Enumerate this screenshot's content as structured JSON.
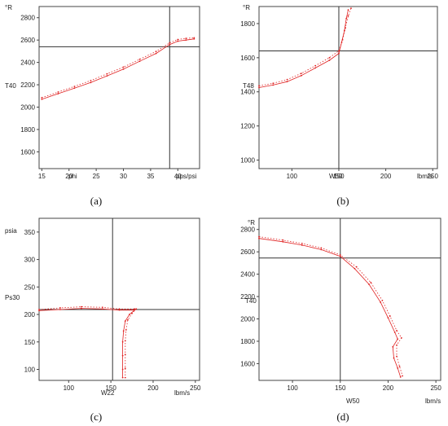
{
  "chart_data": [
    {
      "type": "line",
      "caption": "(a)",
      "unit_label": "°R",
      "xlabel": "phi",
      "ylabel": "T40",
      "xunit": "pps/psi",
      "xlim": [
        14.5,
        44
      ],
      "ylim": [
        1450,
        2900
      ],
      "xticks": [
        15,
        20,
        25,
        30,
        35,
        40
      ],
      "yticks": [
        1600,
        1800,
        2000,
        2200,
        2400,
        2600,
        2800
      ],
      "crosshair": {
        "x": 38.5,
        "y": 2540
      },
      "series": [
        {
          "points": [
            [
              15,
              2070
            ],
            [
              18,
              2120
            ],
            [
              21,
              2170
            ],
            [
              24,
              2220
            ],
            [
              27,
              2280
            ],
            [
              30,
              2340
            ],
            [
              33,
              2410
            ],
            [
              36,
              2480
            ],
            [
              38.5,
              2560
            ],
            [
              40,
              2590
            ],
            [
              41.5,
              2600
            ],
            [
              43,
              2610
            ]
          ]
        },
        {
          "points": [
            [
              15,
              2085
            ],
            [
              18,
              2135
            ],
            [
              21,
              2185
            ],
            [
              24,
              2238
            ],
            [
              27,
              2298
            ],
            [
              30,
              2358
            ],
            [
              33,
              2428
            ],
            [
              36,
              2498
            ],
            [
              38.5,
              2575
            ],
            [
              40,
              2605
            ],
            [
              41.5,
              2615
            ],
            [
              43,
              2620
            ]
          ]
        }
      ]
    },
    {
      "type": "line",
      "caption": "(b)",
      "unit_label": "°R",
      "xlabel": "W50",
      "ylabel": "T48",
      "xunit": "lbm/s",
      "xlim": [
        65,
        255
      ],
      "ylim": [
        950,
        1900
      ],
      "xticks": [
        100,
        150,
        200,
        250
      ],
      "yticks": [
        1000,
        1200,
        1400,
        1600,
        1800
      ],
      "crosshair": {
        "x": 150,
        "y": 1640
      },
      "series": [
        {
          "points": [
            [
              65,
              1425
            ],
            [
              80,
              1440
            ],
            [
              95,
              1460
            ],
            [
              110,
              1495
            ],
            [
              125,
              1540
            ],
            [
              140,
              1585
            ],
            [
              150,
              1625
            ],
            [
              153,
              1690
            ],
            [
              156,
              1760
            ],
            [
              158,
              1830
            ],
            [
              160,
              1880
            ]
          ]
        },
        {
          "points": [
            [
              65,
              1435
            ],
            [
              80,
              1450
            ],
            [
              95,
              1472
            ],
            [
              110,
              1508
            ],
            [
              125,
              1553
            ],
            [
              140,
              1600
            ],
            [
              150,
              1640
            ],
            [
              154,
              1705
            ],
            [
              157,
              1775
            ],
            [
              160,
              1845
            ],
            [
              163,
              1890
            ]
          ]
        }
      ]
    },
    {
      "type": "line",
      "caption": "(c)",
      "unit_label": "psia",
      "xlabel": "W22",
      "ylabel": "Ps30",
      "xunit": "lbm/s",
      "xlim": [
        65,
        255
      ],
      "ylim": [
        80,
        375
      ],
      "xticks": [
        100,
        150,
        200,
        250
      ],
      "yticks": [
        100,
        150,
        200,
        250,
        300,
        350
      ],
      "crosshair": {
        "x": 152,
        "y": 209
      },
      "series": [
        {
          "points": [
            [
              65,
              207
            ],
            [
              90,
              209
            ],
            [
              115,
              211
            ],
            [
              140,
              210
            ],
            [
              160,
              208
            ],
            [
              178,
              208
            ]
          ]
        },
        {
          "points": [
            [
              65,
              209
            ],
            [
              90,
              212
            ],
            [
              115,
              214
            ],
            [
              140,
              213
            ],
            [
              160,
              210
            ],
            [
              178,
              210
            ]
          ]
        },
        {
          "points": [
            [
              178,
              208
            ],
            [
              172,
              200
            ],
            [
              167,
              188
            ],
            [
              165,
              170
            ],
            [
              164,
              150
            ],
            [
              164,
              125
            ],
            [
              164,
              100
            ],
            [
              164,
              85
            ]
          ]
        },
        {
          "points": [
            [
              180,
              210
            ],
            [
              175,
              202
            ],
            [
              170,
              190
            ],
            [
              168,
              172
            ],
            [
              167,
              152
            ],
            [
              167,
              127
            ],
            [
              167,
              102
            ],
            [
              167,
              85
            ]
          ]
        }
      ]
    },
    {
      "type": "line",
      "caption": "(d)",
      "unit_label": "°R",
      "xlabel": "W50",
      "ylabel": "T40",
      "xunit": "lbm/s",
      "xlim": [
        65,
        255
      ],
      "ylim": [
        1450,
        2900
      ],
      "xticks": [
        100,
        150,
        200,
        250
      ],
      "yticks": [
        1600,
        1800,
        2000,
        2200,
        2400,
        2600,
        2800
      ],
      "crosshair": {
        "x": 150,
        "y": 2545
      },
      "series": [
        {
          "points": [
            [
              65,
              2720
            ],
            [
              90,
              2690
            ],
            [
              110,
              2660
            ],
            [
              130,
              2620
            ],
            [
              150,
              2560
            ],
            [
              165,
              2450
            ],
            [
              180,
              2310
            ],
            [
              192,
              2150
            ],
            [
              200,
              2010
            ],
            [
              207,
              1880
            ],
            [
              210,
              1820
            ],
            [
              205,
              1750
            ],
            [
              206,
              1650
            ],
            [
              210,
              1560
            ],
            [
              213,
              1480
            ]
          ]
        },
        {
          "points": [
            [
              65,
              2735
            ],
            [
              90,
              2705
            ],
            [
              110,
              2675
            ],
            [
              130,
              2635
            ],
            [
              150,
              2572
            ],
            [
              167,
              2465
            ],
            [
              182,
              2325
            ],
            [
              194,
              2165
            ],
            [
              202,
              2025
            ],
            [
              209,
              1895
            ],
            [
              214,
              1830
            ],
            [
              209,
              1765
            ],
            [
              209,
              1665
            ],
            [
              212,
              1575
            ],
            [
              215,
              1490
            ]
          ]
        }
      ]
    }
  ]
}
